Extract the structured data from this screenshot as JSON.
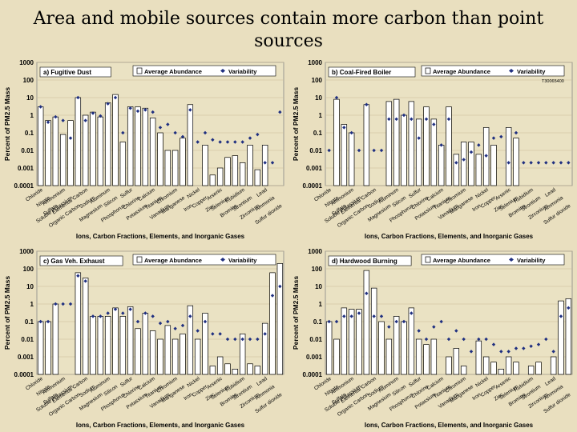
{
  "page": {
    "title_line1": "Area and mobile sources contain more carbon than point",
    "title_line2": "sources"
  },
  "colors": {
    "background": "#e9dfbf",
    "plot_bg": "#eae2c3",
    "bar_fill": "#ffffff",
    "marker": "#1f2f80",
    "gridline": "#c8bc95"
  },
  "chart_data": [
    {
      "type": "bar",
      "title": "a) Fugitive Dust",
      "legend": {
        "bar": "Average Abundance",
        "marker": "Variability",
        "placement": "top-center"
      },
      "ylabel": "Percent of PM2.5 Mass",
      "xlabel": "Ions, Carbon Fractions, Elements, and Inorganic Gases",
      "yscale": "log",
      "ylim": [
        0.0001,
        1000
      ],
      "yticks": [
        "1000",
        "100",
        "10",
        "1",
        "0.1",
        "0.01",
        "0.001",
        "0.0001"
      ],
      "categories": [
        "Chloride",
        "Nitrate",
        "Sulfate",
        "Ammonium",
        "Soluble Potassium",
        "Organic Carbon",
        "Elemental Carbon",
        "Sodium",
        "Magnesium",
        "Aluminum",
        "Silicon",
        "Phosphorus",
        "Sulfur",
        "Chlorine",
        "Potassium",
        "Calcium",
        "Titanium",
        "Vanadium",
        "Chromium",
        "Manganese",
        "Iron",
        "Nickel",
        "Copper",
        "Zinc",
        "Arsenic",
        "Selenium",
        "Bromine",
        "Rubidium",
        "Strontium",
        "Zirconium",
        "Lead",
        "Ammonia",
        "Sulfur dioxide"
      ],
      "tick_labels_visible": [
        "Chloride",
        "Nitrate",
        "Sulfate",
        "Ammonium",
        "Soluble Potassium",
        "Organic Carbon",
        "Elemental Carbon",
        "Sodium",
        "Magnesium",
        "Aluminum",
        "Silicon",
        "Phosphorus",
        "Sulfur",
        "Chlorine",
        "Potassium",
        "Calcium",
        "Titanium",
        "Vanadium",
        "Chromium",
        "Manganese",
        "Iron",
        "Nickel",
        "Copper",
        "Zinc",
        "Arsenic",
        "Selenium",
        "Bromine",
        "Rubidium",
        "Strontium",
        "Zirconium",
        "Lead",
        "Ammonia",
        "Sulfur dioxide"
      ],
      "series": [
        {
          "name": "Average Abundance",
          "values": [
            3,
            0.5,
            0.8,
            0.08,
            0.5,
            10,
            1,
            1.5,
            0.8,
            5,
            15,
            0.03,
            3,
            3,
            2.5,
            0.7,
            0.1,
            0.01,
            0.01,
            0.05,
            4,
            0.0001,
            0.02,
            0.0004,
            0.001,
            0.004,
            0.005,
            0.002,
            0.02,
            0.0008,
            0.02,
            null,
            null
          ]
        },
        {
          "name": "Variability",
          "values": [
            3,
            0.4,
            0.8,
            0.5,
            0.05,
            10,
            0.5,
            1.3,
            0.9,
            4.5,
            10,
            0.1,
            2.5,
            1.7,
            2,
            1.5,
            0.2,
            0.3,
            0.1,
            0.06,
            2,
            0.03,
            0.1,
            0.04,
            0.03,
            0.03,
            0.03,
            0.03,
            0.05,
            0.08,
            0.002,
            0.002,
            1.5
          ]
        }
      ]
    },
    {
      "type": "bar",
      "title": "b) Coal-Fired Boiler",
      "annotation": "T30065400",
      "legend": {
        "bar": "Average Abundance",
        "marker": "Variability",
        "placement": "top-center"
      },
      "ylabel": "Percent of PM2.5 Mass",
      "xlabel": "Ions, Carbon Fractions, Elements, and Inorganic Gases",
      "yscale": "log",
      "ylim": [
        0.0001,
        1000
      ],
      "yticks": [
        "1000",
        "100",
        "10",
        "1",
        "0.1",
        "0.01",
        "0.001",
        "0.0001"
      ],
      "categories": [
        "Chloride",
        "Nitrate",
        "Sulfate",
        "Ammonium",
        "Soluble Potassium",
        "Organic Carbon",
        "Elemental Carbon",
        "Sodium",
        "Magnesium",
        "Aluminum",
        "Silicon",
        "Phosphorus",
        "Sulfur",
        "Chlorine",
        "Potassium",
        "Calcium",
        "Titanium",
        "Vanadium",
        "Chromium",
        "Manganese",
        "Iron",
        "Nickel",
        "Copper",
        "Zinc",
        "Arsenic",
        "Selenium",
        "Bromine",
        "Rubidium",
        "Strontium",
        "Zirconium",
        "Lead",
        "Ammonia",
        "Sulfur dioxide"
      ],
      "tick_labels_visible": [
        "Chloride",
        "Nitrate",
        "Sulfate",
        "Ammonium",
        "Soluble Potassium",
        "Organic Carbon",
        "Elemental Carbon",
        "Sodium",
        "Magnesium",
        "Aluminum",
        "Silicon",
        "Phosphorus",
        "Sulfur",
        "Chlorine",
        "Potassium",
        "Calcium",
        "Titanium",
        "Vanadium",
        "Chromium",
        "Manganese",
        "Iron",
        "Nickel",
        "Copper",
        "Zinc",
        "Arsenic",
        "Selenium",
        "Bromine",
        "Rubidium",
        "Strontium",
        "Zirconium",
        "Lead",
        "Ammonia",
        "Sulfur dioxide"
      ],
      "series": [
        {
          "name": "Average Abundance",
          "values": [
            null,
            8,
            0.3,
            0.1,
            null,
            4,
            null,
            null,
            6,
            8,
            1,
            6,
            0.6,
            3,
            0.6,
            0.02,
            3,
            0.006,
            0.03,
            0.03,
            0.006,
            0.2,
            0.02,
            null,
            0.2,
            0.05,
            null,
            null,
            null,
            null,
            null,
            null,
            null
          ]
        },
        {
          "name": "Variability",
          "values": [
            0.01,
            10,
            0.2,
            0.1,
            0.01,
            4,
            0.01,
            0.01,
            0.6,
            0.6,
            1,
            0.6,
            0.05,
            0.6,
            0.3,
            0.02,
            0.6,
            0.002,
            0.003,
            0.008,
            0.02,
            0.005,
            0.05,
            0.06,
            0.002,
            0.1,
            0.002,
            0.002,
            0.002,
            0.002,
            0.002,
            0.002,
            0.002
          ]
        }
      ]
    },
    {
      "type": "bar",
      "title": "c) Gas Veh. Exhaust",
      "legend": {
        "bar": "Average Abundance",
        "marker": "Variability",
        "placement": "top-center"
      },
      "ylabel": "Percent of PM2.5 Mass",
      "xlabel": "Ions, Carbon Fractions, Elements, and Inorganic Gases",
      "yscale": "log",
      "ylim": [
        0.0001,
        1000
      ],
      "yticks": [
        "1000",
        "100",
        "10",
        "1",
        "0.1",
        "0.01",
        "0.001",
        "0.0001"
      ],
      "categories": [
        "Chloride",
        "Nitrate",
        "Sulfate",
        "Ammonium",
        "Soluble Potassium",
        "Organic Carbon",
        "Elemental Carbon",
        "Sodium",
        "Magnesium",
        "Aluminum",
        "Silicon",
        "Phosphorus",
        "Sulfur",
        "Chlorine",
        "Potassium",
        "Calcium",
        "Titanium",
        "Vanadium",
        "Chromium",
        "Manganese",
        "Iron",
        "Nickel",
        "Copper",
        "Zinc",
        "Arsenic",
        "Selenium",
        "Bromine",
        "Rubidium",
        "Strontium",
        "Zirconium",
        "Lead",
        "Ammonia",
        "Sulfur dioxide"
      ],
      "tick_labels_visible": [
        "Chloride",
        "Nitrate",
        "Sulfate",
        "Ammonium",
        "Soluble Potassium",
        "Organic Carbon",
        "Elemental Carbon",
        "Sodium",
        "Magnesium",
        "Aluminum",
        "Silicon",
        "Phosphorus",
        "Sulfur",
        "Chlorine",
        "Potassium",
        "Calcium",
        "Titanium",
        "Vanadium",
        "Chromium",
        "Manganese",
        "Iron",
        "Nickel",
        "Copper",
        "Zinc",
        "Arsenic",
        "Selenium",
        "Bromine",
        "Rubidium",
        "Strontium",
        "Zirconium",
        "Lead",
        "Ammonia",
        "Sulfur dioxide"
      ],
      "series": [
        {
          "name": "Average Abundance",
          "values": [
            0.1,
            0.1,
            1,
            null,
            null,
            60,
            30,
            0.2,
            0.2,
            0.2,
            0.6,
            0.2,
            0.7,
            0.04,
            0.3,
            0.03,
            0.01,
            0.06,
            0.01,
            0.02,
            0.8,
            0.01,
            0.3,
            0.0003,
            0.001,
            0.0004,
            0.0002,
            0.02,
            0.0004,
            0.0003,
            0.08,
            60,
            200
          ]
        },
        {
          "name": "Variability",
          "values": [
            0.1,
            0.1,
            1,
            1,
            1,
            40,
            20,
            0.2,
            0.2,
            0.3,
            0.5,
            0.3,
            0.5,
            0.1,
            0.3,
            0.2,
            0.08,
            0.1,
            0.04,
            0.06,
            0.2,
            0.03,
            0.1,
            0.02,
            0.02,
            0.01,
            0.01,
            0.01,
            0.01,
            0.01,
            0.02,
            3,
            10
          ]
        }
      ]
    },
    {
      "type": "bar",
      "title": "d) Hardwood Burning",
      "legend": {
        "bar": "Average Abundance",
        "marker": "Variability",
        "placement": "top-center"
      },
      "ylabel": "Percent of PM2.5 Mass",
      "xlabel": "Ions, Carbon Fractions, Elements, and Inorganic Gases",
      "yscale": "log",
      "ylim": [
        0.0001,
        1000
      ],
      "yticks": [
        "1000",
        "100",
        "10",
        "1",
        "0.1",
        "0.01",
        "0.001",
        "0.0001"
      ],
      "categories": [
        "Chloride",
        "Nitrate",
        "Sulfate",
        "Ammonium",
        "Soluble Potassium",
        "Organic Carbon",
        "Elemental Carbon",
        "Sodium",
        "Magnesium",
        "Aluminum",
        "Silicon",
        "Phosphorus",
        "Sulfur",
        "Chlorine",
        "Potassium",
        "Calcium",
        "Titanium",
        "Vanadium",
        "Chromium",
        "Manganese",
        "Iron",
        "Nickel",
        "Copper",
        "Zinc",
        "Arsenic",
        "Selenium",
        "Bromine",
        "Rubidium",
        "Strontium",
        "Zirconium",
        "Lead",
        "Ammonia",
        "Sulfur dioxide"
      ],
      "tick_labels_visible": [
        "Chloride",
        "Nitrate",
        "Sulfate",
        "Ammonium",
        "Soluble Potassium",
        "Organic Carbon",
        "Elemental Carbon",
        "Sodium",
        "Magnesium",
        "Aluminum",
        "Silicon",
        "Phosphorus",
        "Sulfur",
        "Chlorine",
        "Potassium",
        "Calcium",
        "Titanium",
        "Vanadium",
        "Chromium",
        "Manganese",
        "Iron",
        "Nickel",
        "Copper",
        "Zinc",
        "Arsenic",
        "Selenium",
        "Bromine",
        "Rubidium",
        "Strontium",
        "Zirconium",
        "Lead",
        "Ammonia",
        "Sulfur dioxide"
      ],
      "series": [
        {
          "name": "Average Abundance",
          "values": [
            0.1,
            0.01,
            0.6,
            0.5,
            0.5,
            80,
            8,
            0.1,
            0.01,
            0.2,
            0.1,
            0.6,
            0.01,
            0.005,
            0.01,
            0.0001,
            0.001,
            0.003,
            0.0003,
            0.0001,
            0.008,
            0.001,
            0.0005,
            0.0002,
            0.001,
            0.0005,
            0.0001,
            0.0003,
            0.0005,
            0.0001,
            0.001,
            1.5,
            2
          ]
        },
        {
          "name": "Variability",
          "values": [
            0.1,
            0.1,
            0.2,
            0.2,
            0.3,
            4,
            0.2,
            0.2,
            0.05,
            0.1,
            0.1,
            0.3,
            0.03,
            0.01,
            0.05,
            0.1,
            0.01,
            0.03,
            0.01,
            0.002,
            0.01,
            0.01,
            0.005,
            0.002,
            0.002,
            0.003,
            0.003,
            0.004,
            0.005,
            0.01,
            0.002,
            0.2,
            0.6
          ]
        }
      ]
    }
  ]
}
